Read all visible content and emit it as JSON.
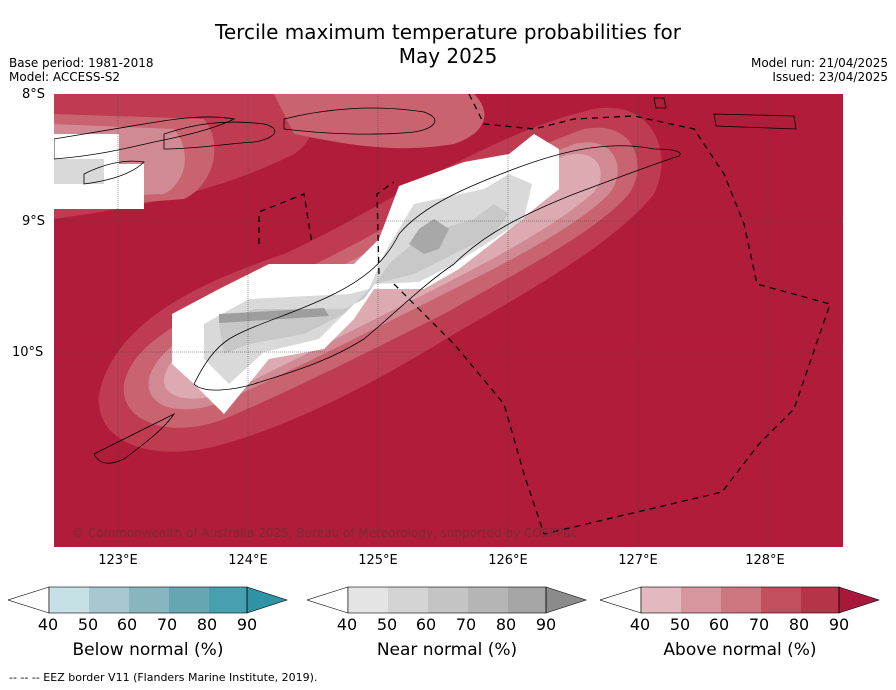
{
  "title": {
    "line1": "Tercile maximum temperature probabilities for",
    "line2": "May 2025"
  },
  "meta_left": {
    "base_period": "Base period: 1981-2018",
    "model": "Model: ACCESS-S2"
  },
  "meta_right": {
    "model_run": "Model run: 21/04/2025",
    "issued": "Issued: 23/04/2025"
  },
  "map": {
    "lat_labels": [
      "8°S",
      "9°S",
      "10°S"
    ],
    "lon_labels": [
      "123°E",
      "124°E",
      "125°E",
      "126°E",
      "127°E",
      "128°E"
    ],
    "copyright": "© Commonwealth of Australia 2025, Bureau of Meteorology, supported by COSPPac",
    "colors": {
      "above_90": "#b01c3a",
      "above_80": "#bf3b52",
      "above_70": "#c8636f",
      "above_60": "#d18a93",
      "above_50": "#dcaab0",
      "near": "#cfcfcf",
      "near_dark": "#b2b2b2",
      "white": "#ffffff"
    }
  },
  "colorbars": {
    "below": {
      "title": "Below normal (%)",
      "ticks": [
        "40",
        "50",
        "60",
        "70",
        "80",
        "90"
      ],
      "colors": [
        "#ffffff",
        "#c6e0e6",
        "#a8c8cf",
        "#88b6c0",
        "#66a6b3",
        "#47a0b0",
        "#2f93a6"
      ]
    },
    "near": {
      "title": "Near normal (%)",
      "ticks": [
        "40",
        "50",
        "60",
        "70",
        "80",
        "90"
      ],
      "colors": [
        "#ffffff",
        "#e4e4e4",
        "#d4d4d4",
        "#c4c4c4",
        "#b5b5b5",
        "#a5a5a5",
        "#8b8b8b"
      ]
    },
    "above": {
      "title": "Above normal (%)",
      "ticks": [
        "40",
        "50",
        "60",
        "70",
        "80",
        "90"
      ],
      "colors": [
        "#ffffff",
        "#e2b9bf",
        "#d7959e",
        "#cc7780",
        "#c14f5e",
        "#b63447",
        "#a8183a"
      ]
    }
  },
  "footer": "--  --  -- EEZ border V11 (Flanders Marine Institute, 2019)."
}
